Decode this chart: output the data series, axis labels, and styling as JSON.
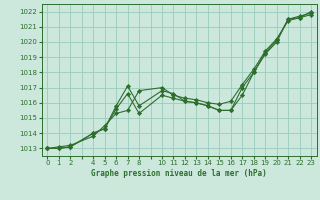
{
  "title": "Graphe pression niveau de la mer (hPa)",
  "background_color": "#cce8dd",
  "grid_color": "#99ccbb",
  "line_color": "#2d6e2d",
  "xlim": [
    -0.5,
    23.5
  ],
  "ylim": [
    1012.5,
    1022.5
  ],
  "yticks": [
    1013,
    1014,
    1015,
    1016,
    1017,
    1018,
    1019,
    1020,
    1021,
    1022
  ],
  "xticks": [
    0,
    1,
    2,
    3,
    4,
    5,
    6,
    7,
    8,
    9,
    10,
    11,
    12,
    13,
    14,
    15,
    16,
    17,
    18,
    19,
    20,
    21,
    22,
    23
  ],
  "xtick_labels": [
    "0",
    "1",
    "2",
    "",
    "4",
    "5",
    "6",
    "7",
    "8",
    "",
    "10",
    "11",
    "12",
    "13",
    "14",
    "15",
    "16",
    "17",
    "18",
    "19",
    "20",
    "21",
    "22",
    "23"
  ],
  "series": [
    {
      "x": [
        0,
        1,
        2,
        4,
        5,
        6,
        7,
        8,
        10,
        11,
        12,
        13,
        14,
        15,
        16,
        17,
        18,
        19,
        20,
        21,
        22,
        23
      ],
      "y": [
        1013.0,
        1013.0,
        1013.1,
        1014.0,
        1014.3,
        1015.6,
        1016.6,
        1015.3,
        1016.5,
        1016.3,
        1016.1,
        1016.0,
        1015.8,
        1015.5,
        1015.5,
        1016.5,
        1018.0,
        1019.2,
        1020.0,
        1021.5,
        1021.6,
        1021.8
      ]
    },
    {
      "x": [
        0,
        1,
        2,
        4,
        5,
        6,
        7,
        8,
        10,
        11,
        12,
        13,
        14,
        15,
        16,
        17,
        18,
        19,
        20,
        21,
        22,
        23
      ],
      "y": [
        1013.0,
        1013.0,
        1013.1,
        1014.0,
        1014.3,
        1015.8,
        1017.1,
        1015.8,
        1016.8,
        1016.6,
        1016.1,
        1016.0,
        1015.8,
        1015.5,
        1015.5,
        1017.0,
        1018.0,
        1019.3,
        1020.1,
        1021.5,
        1021.7,
        1021.9
      ]
    },
    {
      "x": [
        0,
        1,
        2,
        4,
        5,
        6,
        7,
        8,
        10,
        11,
        12,
        13,
        14,
        15,
        16,
        17,
        18,
        19,
        20,
        21,
        22,
        23
      ],
      "y": [
        1013.0,
        1013.1,
        1013.2,
        1013.8,
        1014.5,
        1015.3,
        1015.5,
        1016.8,
        1017.0,
        1016.5,
        1016.3,
        1016.2,
        1016.0,
        1015.9,
        1016.1,
        1017.2,
        1018.2,
        1019.4,
        1020.2,
        1021.4,
        1021.6,
        1022.0
      ]
    }
  ]
}
